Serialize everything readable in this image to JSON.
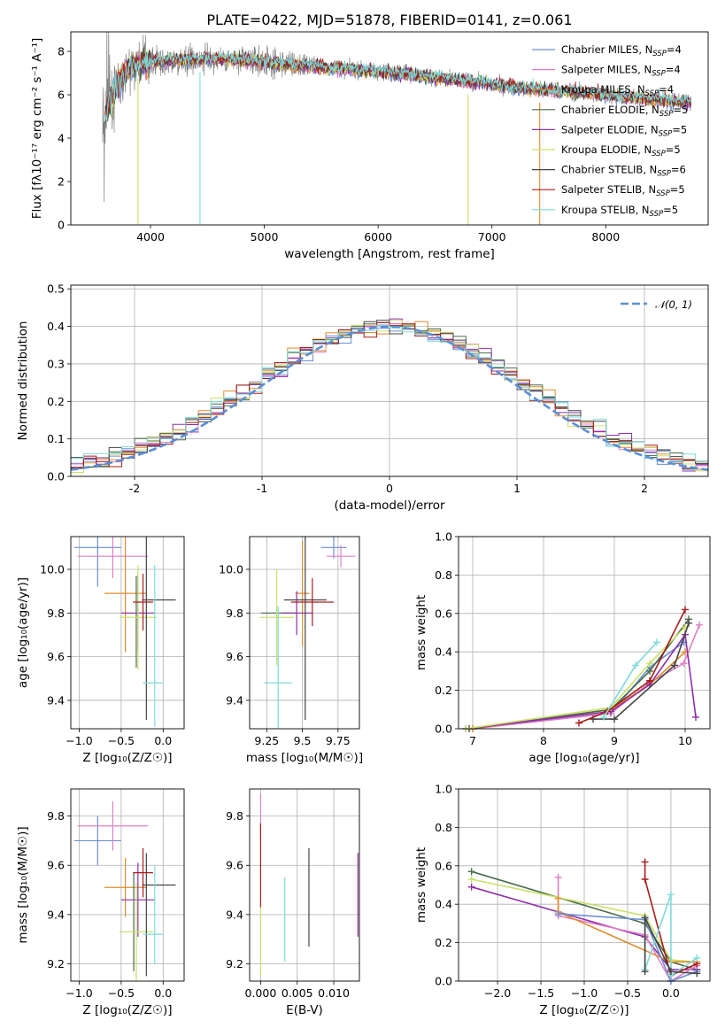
{
  "title": "PLATE=0422, MJD=51878, FIBERID=0141, z=0.061",
  "colors": {
    "Chabrier MILES": "#6a8fd6",
    "Salpeter MILES": "#e07fc4",
    "Kroupa MILES": "#e38a2b",
    "Chabrier ELODIE": "#4a6b4a",
    "Salpeter ELODIE": "#8e2fa8",
    "Kroupa ELODIE": "#c9e06a",
    "Chabrier STELIB": "#444444",
    "Salpeter STELIB": "#a81d1d",
    "Kroupa STELIB": "#7fdada",
    "data": "#808080",
    "normal": "#5b8fd6",
    "grid": "#b0b0b0"
  },
  "chart_data": [
    {
      "id": "spectrum",
      "type": "line",
      "title": "PLATE=0422, MJD=51878, FIBERID=0141, z=0.061",
      "xlabel": "wavelength [Angstrom, rest frame]",
      "ylabel": "Flux [fλ10⁻¹⁷ erg cm⁻² s⁻¹ A⁻¹]",
      "xlim": [
        3300,
        8900
      ],
      "ylim": [
        0,
        8.9
      ],
      "xticks": [
        4000,
        5000,
        6000,
        7000,
        8000
      ],
      "yticks": [
        0,
        2,
        4,
        6,
        8
      ],
      "grid": false,
      "legend_placement": "right",
      "continuum_x": [
        3600,
        3700,
        3800,
        3900,
        4000,
        4200,
        4500,
        4800,
        5000,
        5200,
        5500,
        5800,
        6000,
        6300,
        6600,
        6900,
        7200,
        7500,
        7800,
        8100,
        8400,
        8700
      ],
      "continuum_y": [
        5.0,
        6.4,
        7.2,
        7.4,
        7.5,
        7.6,
        7.65,
        7.6,
        7.5,
        7.4,
        7.3,
        7.15,
        7.05,
        6.95,
        6.75,
        6.55,
        6.35,
        6.2,
        6.1,
        5.95,
        5.8,
        5.65
      ],
      "dips": [
        {
          "x": 4435,
          "y": 0.0,
          "series": "Kroupa STELIB"
        },
        {
          "x": 3890,
          "y": 0.0,
          "series": "Kroupa ELODIE"
        },
        {
          "x": 6790,
          "y": 0.0,
          "series": "Kroupa ELODIE"
        },
        {
          "x": 7420,
          "y": 0.0,
          "series": "Kroupa MILES"
        }
      ],
      "series": [
        {
          "name": "Chabrier MILES, N_SSP=4",
          "ssp": "4"
        },
        {
          "name": "Salpeter MILES, N_SSP=4",
          "ssp": "4"
        },
        {
          "name": "Kroupa MILES, N_SSP=4",
          "ssp": "4"
        },
        {
          "name": "Chabrier ELODIE, N_SSP=5",
          "ssp": "5"
        },
        {
          "name": "Salpeter ELODIE, N_SSP=5",
          "ssp": "5"
        },
        {
          "name": "Kroupa ELODIE, N_SSP=5",
          "ssp": "5"
        },
        {
          "name": "Chabrier STELIB, N_SSP=6",
          "ssp": "6"
        },
        {
          "name": "Salpeter STELIB, N_SSP=5",
          "ssp": "5"
        },
        {
          "name": "Kroupa STELIB, N_SSP=5",
          "ssp": "5"
        }
      ]
    },
    {
      "id": "residuals",
      "type": "line",
      "xlabel": "(data-model)/error",
      "ylabel": "Normed distribution",
      "xlim": [
        -2.5,
        2.5
      ],
      "ylim": [
        0,
        0.51
      ],
      "xticks": [
        -2,
        -1,
        0,
        1,
        2
      ],
      "yticks": [
        0.0,
        0.1,
        0.2,
        0.3,
        0.4,
        0.5
      ],
      "grid": true,
      "legend_placement": "top-right",
      "legend": "𝒩(0, 1)",
      "bin_width": 0.1,
      "bins_start": -2.5
    },
    {
      "id": "z-age",
      "type": "scatter",
      "xlabel": "Z [log₁₀(Z/Z☉)]",
      "ylabel": "age  [log₁₀(age/yr)]",
      "xlim": [
        -1.1,
        0.25
      ],
      "ylim": [
        9.27,
        10.15
      ],
      "xticks": [
        -1.0,
        -0.5,
        0.0
      ],
      "xticklabels": [
        "−1.0",
        "−0.5",
        "0.0"
      ],
      "yticks": [
        9.4,
        9.6,
        9.8,
        10.0
      ],
      "grid": true,
      "points": [
        {
          "series": "Chabrier MILES",
          "x": -0.78,
          "xerr": 0.28,
          "y": 10.1,
          "yerr": 0.18
        },
        {
          "series": "Salpeter MILES",
          "x": -0.6,
          "xerr": 0.42,
          "y": 10.06,
          "yerr": 0.1
        },
        {
          "series": "Kroupa MILES",
          "x": -0.45,
          "xerr": 0.25,
          "y": 9.89,
          "yerr": 0.27
        },
        {
          "series": "Chabrier ELODIE",
          "x": -0.32,
          "xerr": 0.0,
          "y": 9.76,
          "yerr": 0.21
        },
        {
          "series": "Salpeter ELODIE",
          "x": -0.3,
          "xerr": 0.2,
          "y": 9.8,
          "yerr": 0.17
        },
        {
          "series": "Kroupa ELODIE",
          "x": -0.3,
          "xerr": 0.22,
          "y": 9.78,
          "yerr": 0.24
        },
        {
          "series": "Chabrier STELIB",
          "x": -0.2,
          "xerr": 0.0,
          "y": 9.86,
          "yerr": 0.55
        },
        {
          "series": "Chabrier STELIB",
          "x": -0.05,
          "xerr": 0.2,
          "y": 9.86,
          "yerr": 0.0
        },
        {
          "series": "Salpeter STELIB",
          "x": -0.24,
          "xerr": 0.12,
          "y": 9.85,
          "yerr": 0.13
        },
        {
          "series": "Kroupa STELIB",
          "x": -0.12,
          "xerr": 0.12,
          "y": 9.48,
          "yerr": 0.0
        },
        {
          "series": "Kroupa STELIB",
          "x": -0.1,
          "xerr": 0.0,
          "y": 9.65,
          "yerr": 0.37
        }
      ]
    },
    {
      "id": "mass-age",
      "type": "scatter",
      "xlabel": "mass [log₁₀(M/M☉)]",
      "ylabel": "",
      "xlim": [
        9.13,
        9.9
      ],
      "ylim": [
        9.27,
        10.15
      ],
      "xticks": [
        9.25,
        9.5,
        9.75
      ],
      "yticks": [
        9.4,
        9.6,
        9.8,
        10.0
      ],
      "grid": true,
      "points": [
        {
          "series": "Chabrier MILES",
          "x": 9.72,
          "xerr": 0.09,
          "y": 10.1,
          "yerr": 0.05
        },
        {
          "series": "Salpeter MILES",
          "x": 9.77,
          "xerr": 0.1,
          "y": 10.06,
          "yerr": 0.05
        },
        {
          "series": "Kroupa MILES",
          "x": 9.5,
          "xerr": 0.05,
          "y": 9.89,
          "yerr": 0.24
        },
        {
          "series": "Chabrier ELODIE",
          "x": 9.33,
          "xerr": 0.12,
          "y": 9.8,
          "yerr": 0.0
        },
        {
          "series": "Salpeter ELODIE",
          "x": 9.46,
          "xerr": 0.11,
          "y": 9.8,
          "yerr": 0.1
        },
        {
          "series": "Kroupa ELODIE",
          "x": 9.32,
          "xerr": 0.12,
          "y": 9.78,
          "yerr": 0.22
        },
        {
          "series": "Chabrier STELIB",
          "x": 9.52,
          "xerr": 0.15,
          "y": 9.86,
          "yerr": 0.55
        },
        {
          "series": "Salpeter STELIB",
          "x": 9.57,
          "xerr": 0.15,
          "y": 9.85,
          "yerr": 0.11
        },
        {
          "series": "Kroupa STELIB",
          "x": 9.33,
          "xerr": 0.1,
          "y": 9.48,
          "yerr": 0.35
        }
      ]
    },
    {
      "id": "age-weight",
      "type": "line",
      "xlabel": "age  [log₁₀(age/yr)]",
      "ylabel": "mass weight",
      "xlim": [
        6.8,
        10.35
      ],
      "ylim": [
        0,
        1.0
      ],
      "xticks": [
        7,
        8,
        9,
        10
      ],
      "yticks": [
        0.0,
        0.2,
        0.4,
        0.6,
        0.8,
        1.0
      ],
      "grid": true,
      "series": [
        {
          "name": "Chabrier MILES",
          "x": [
            6.95,
            8.95,
            9.5,
            9.98
          ],
          "y": [
            0.0,
            0.08,
            0.32,
            0.45
          ]
        },
        {
          "name": "Salpeter MILES",
          "x": [
            7.0,
            8.95,
            9.5,
            9.98,
            10.2
          ],
          "y": [
            0.0,
            0.08,
            0.24,
            0.34,
            0.54
          ]
        },
        {
          "name": "Kroupa MILES",
          "x": [
            7.0,
            8.95,
            9.5,
            10.0
          ],
          "y": [
            0.0,
            0.1,
            0.23,
            0.4
          ]
        },
        {
          "name": "Chabrier ELODIE",
          "x": [
            6.95,
            8.95,
            9.5,
            10.05
          ],
          "y": [
            0.0,
            0.1,
            0.3,
            0.57
          ]
        },
        {
          "name": "Salpeter ELODIE",
          "x": [
            6.9,
            8.95,
            9.5,
            10.0,
            10.15
          ],
          "y": [
            0.0,
            0.09,
            0.23,
            0.49,
            0.06
          ]
        },
        {
          "name": "Kroupa ELODIE",
          "x": [
            6.9,
            8.95,
            9.5,
            10.0
          ],
          "y": [
            0.0,
            0.11,
            0.34,
            0.53
          ]
        },
        {
          "name": "Chabrier STELIB",
          "x": [
            8.7,
            9.0,
            9.85,
            10.05
          ],
          "y": [
            0.05,
            0.05,
            0.33,
            0.55
          ]
        },
        {
          "name": "Salpeter STELIB",
          "x": [
            8.5,
            8.9,
            9.5,
            10.0
          ],
          "y": [
            0.03,
            0.09,
            0.25,
            0.62
          ]
        },
        {
          "name": "Kroupa STELIB",
          "x": [
            8.85,
            9.3,
            9.6
          ],
          "y": [
            0.06,
            0.33,
            0.45
          ]
        }
      ]
    },
    {
      "id": "z-mass",
      "type": "scatter",
      "xlabel": "Z [log₁₀(Z/Z☉)]",
      "ylabel": "mass [log₁₀(M/M☉)]",
      "xlim": [
        -1.1,
        0.25
      ],
      "ylim": [
        9.13,
        9.91
      ],
      "xticks": [
        -1.0,
        -0.5,
        0.0
      ],
      "xticklabels": [
        "−1.0",
        "−0.5",
        "0.0"
      ],
      "yticks": [
        9.2,
        9.4,
        9.6,
        9.8
      ],
      "grid": true,
      "points": [
        {
          "series": "Chabrier MILES",
          "x": -0.78,
          "xerr": 0.28,
          "y": 9.7,
          "yerr": 0.1
        },
        {
          "series": "Salpeter MILES",
          "x": -0.6,
          "xerr": 0.42,
          "y": 9.76,
          "yerr": 0.1
        },
        {
          "series": "Kroupa MILES",
          "x": -0.45,
          "xerr": 0.25,
          "y": 9.51,
          "yerr": 0.12
        },
        {
          "series": "Chabrier ELODIE",
          "x": -0.35,
          "xerr": 0.0,
          "y": 9.37,
          "yerr": 0.2
        },
        {
          "series": "Salpeter ELODIE",
          "x": -0.3,
          "xerr": 0.2,
          "y": 9.46,
          "yerr": 0.15
        },
        {
          "series": "Kroupa ELODIE",
          "x": -0.32,
          "xerr": 0.2,
          "y": 9.33,
          "yerr": 0.2
        },
        {
          "series": "Chabrier STELIB",
          "x": -0.2,
          "xerr": 0.0,
          "y": 9.4,
          "yerr": 0.25
        },
        {
          "series": "Chabrier STELIB",
          "x": -0.05,
          "xerr": 0.2,
          "y": 9.52,
          "yerr": 0.0
        },
        {
          "series": "Salpeter STELIB",
          "x": -0.24,
          "xerr": 0.12,
          "y": 9.57,
          "yerr": 0.1
        },
        {
          "series": "Kroupa STELIB",
          "x": -0.12,
          "xerr": 0.12,
          "y": 9.32,
          "yerr": 0.0
        },
        {
          "series": "Kroupa STELIB",
          "x": -0.1,
          "xerr": 0.0,
          "y": 9.4,
          "yerr": 0.2
        }
      ]
    },
    {
      "id": "ebv-mass",
      "type": "scatter",
      "xlabel": "E(B-V)",
      "ylabel": "",
      "xlim": [
        -0.0015,
        0.0135
      ],
      "ylim": [
        9.13,
        9.91
      ],
      "xticks": [
        0.0,
        0.005,
        0.01
      ],
      "xticklabels": [
        "0.000",
        "0.005",
        "0.010"
      ],
      "yticks": [
        9.2,
        9.4,
        9.6,
        9.8
      ],
      "grid": true,
      "points": [
        {
          "series": "Salpeter MILES",
          "x": 0.0,
          "y": 9.8,
          "yerr": 0.09
        },
        {
          "series": "Salpeter STELIB",
          "x": 0.0,
          "y": 9.6,
          "yerr": 0.17
        },
        {
          "series": "Kroupa ELODIE",
          "x": 0.0,
          "y": 9.29,
          "yerr": 0.14
        },
        {
          "series": "Kroupa STELIB",
          "x": 0.0033,
          "y": 9.38,
          "yerr": 0.17
        },
        {
          "series": "Chabrier STELIB",
          "x": 0.0066,
          "y": 9.47,
          "yerr": 0.2
        },
        {
          "series": "Salpeter ELODIE",
          "x": 0.0133,
          "y": 9.48,
          "yerr": 0.17
        }
      ]
    },
    {
      "id": "z-weight",
      "type": "line",
      "xlabel": "Z [log₁₀(Z/Z☉)]",
      "ylabel": "mass weight",
      "xlim": [
        -2.45,
        0.45
      ],
      "ylim": [
        0,
        1.0
      ],
      "xticks": [
        -2.0,
        -1.5,
        -1.0,
        -0.5,
        0.0
      ],
      "xticklabels": [
        "−2.0",
        "−1.5",
        "−1.0",
        "−0.5",
        "0.0"
      ],
      "yticks": [
        0.0,
        0.2,
        0.4,
        0.6,
        0.8,
        1.0
      ],
      "grid": true,
      "series": [
        {
          "name": "Chabrier ELODIE",
          "x": [
            -2.3,
            -0.3,
            0.0,
            0.3
          ],
          "y": [
            0.57,
            0.3,
            0.1,
            0.06
          ]
        },
        {
          "name": "Kroupa ELODIE",
          "x": [
            -2.3,
            -0.3,
            0.0,
            0.3
          ],
          "y": [
            0.53,
            0.34,
            0.11,
            0.1
          ]
        },
        {
          "name": "Salpeter ELODIE",
          "x": [
            -2.3,
            -0.3,
            0.0,
            0.3
          ],
          "y": [
            0.49,
            0.23,
            0.06,
            0.06
          ]
        },
        {
          "name": "Salpeter MILES",
          "x": [
            -1.3,
            -1.3,
            -0.3,
            0.0,
            0.3
          ],
          "y": [
            0.54,
            0.34,
            0.24,
            0.0,
            0.08
          ]
        },
        {
          "name": "Kroupa MILES",
          "x": [
            -1.3,
            -1.3,
            0.0,
            0.3
          ],
          "y": [
            0.43,
            0.36,
            0.1,
            0.1
          ]
        },
        {
          "name": "Chabrier MILES",
          "x": [
            -1.3,
            -0.3,
            0.0,
            0.3
          ],
          "y": [
            0.35,
            0.32,
            0.0,
            0.05
          ]
        },
        {
          "name": "Salpeter STELIB",
          "x": [
            -0.3,
            -0.3,
            0.0,
            0.3
          ],
          "y": [
            0.62,
            0.53,
            0.03,
            0.09
          ]
        },
        {
          "name": "Kroupa STELIB",
          "x": [
            -0.3,
            -0.3,
            0.0,
            0.0,
            0.3
          ],
          "y": [
            0.33,
            0.06,
            0.45,
            0.03,
            0.12
          ]
        },
        {
          "name": "Chabrier STELIB",
          "x": [
            -0.3,
            -0.3,
            0.0,
            0.3
          ],
          "y": [
            0.05,
            0.33,
            0.05,
            0.04
          ]
        }
      ]
    }
  ]
}
